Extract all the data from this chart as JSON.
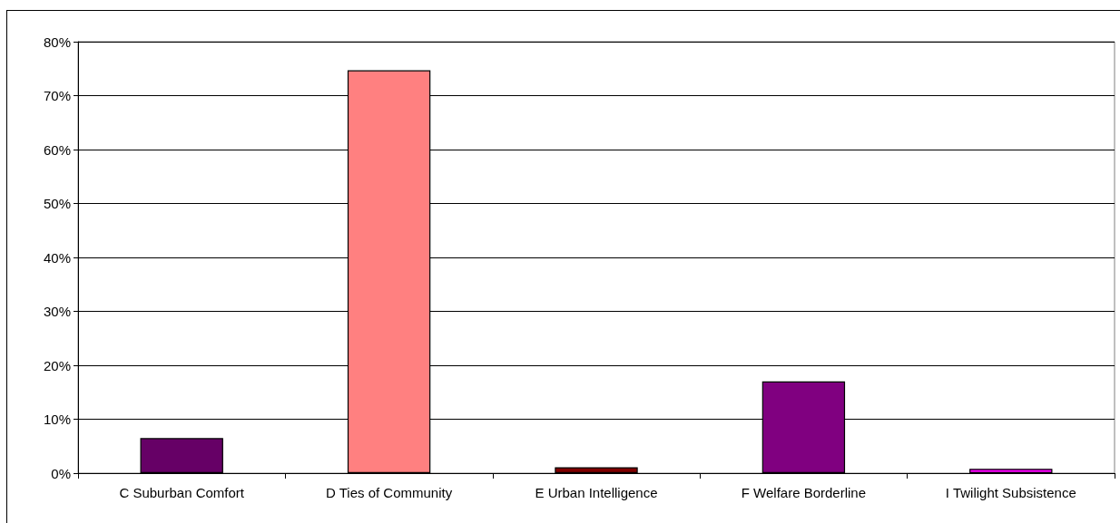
{
  "chart_data": {
    "type": "bar",
    "categories": [
      "C Suburban Comfort",
      "D Ties of Community",
      "E Urban Intelligence",
      "F Welfare Borderline",
      "I Twilight Subsistence"
    ],
    "values": [
      6.5,
      74.7,
      1.1,
      17.0,
      0.8
    ],
    "colors": [
      "#660066",
      "#ff8080",
      "#800000",
      "#800080",
      "#ff00ff"
    ],
    "ylim": [
      0,
      80
    ],
    "yticks": [
      {
        "value": 0,
        "label": "0%"
      },
      {
        "value": 10,
        "label": "10%"
      },
      {
        "value": 20,
        "label": "20%"
      },
      {
        "value": 30,
        "label": "30%"
      },
      {
        "value": 40,
        "label": "40%"
      },
      {
        "value": 50,
        "label": "50%"
      },
      {
        "value": 60,
        "label": "60%"
      },
      {
        "value": 70,
        "label": "70%"
      },
      {
        "value": 80,
        "label": "80%"
      }
    ],
    "grid": "y"
  }
}
